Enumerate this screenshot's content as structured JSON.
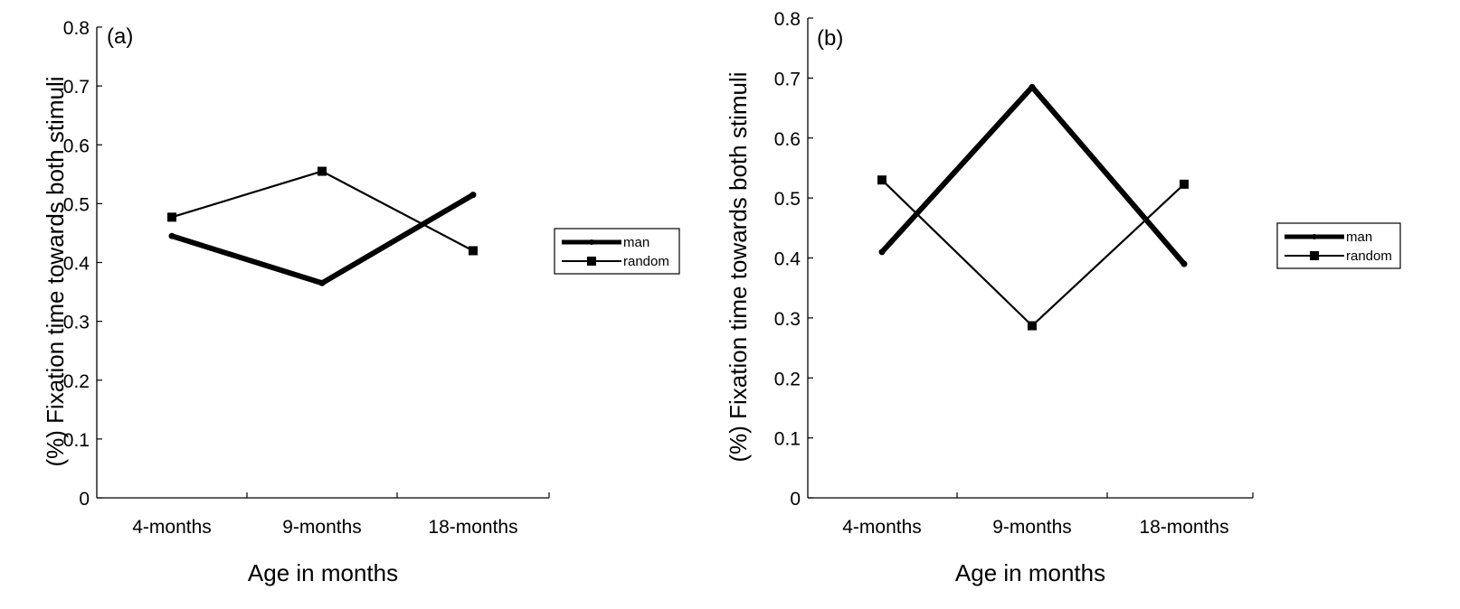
{
  "chart_data": [
    {
      "type": "line",
      "panel_label": "(a)",
      "categories": [
        "4-months",
        "9-months",
        "18-months"
      ],
      "series": [
        {
          "name": "man",
          "values": [
            0.445,
            0.365,
            0.515
          ]
        },
        {
          "name": "random",
          "values": [
            0.477,
            0.555,
            0.42
          ]
        }
      ],
      "xlabel": "Age in months",
      "ylabel": "(%) Fixation time towards both stimuli",
      "ylim": [
        0,
        0.8
      ],
      "yticks": [
        "0",
        "0.1",
        "0.2",
        "0.3",
        "0.4",
        "0.5",
        "0.6",
        "0.7",
        "0.8"
      ],
      "legend_position": "right"
    },
    {
      "type": "line",
      "panel_label": "(b)",
      "categories": [
        "4-months",
        "9-months",
        "18-months"
      ],
      "series": [
        {
          "name": "man",
          "values": [
            0.41,
            0.685,
            0.39
          ]
        },
        {
          "name": "random",
          "values": [
            0.53,
            0.287,
            0.523
          ]
        }
      ],
      "xlabel": "Age in months",
      "ylabel": "(%) Fixation time towards both stimuli",
      "ylim": [
        0,
        0.8
      ],
      "yticks": [
        "0",
        "0.1",
        "0.2",
        "0.3",
        "0.4",
        "0.5",
        "0.6",
        "0.7",
        "0.8"
      ],
      "legend_position": "right"
    }
  ]
}
